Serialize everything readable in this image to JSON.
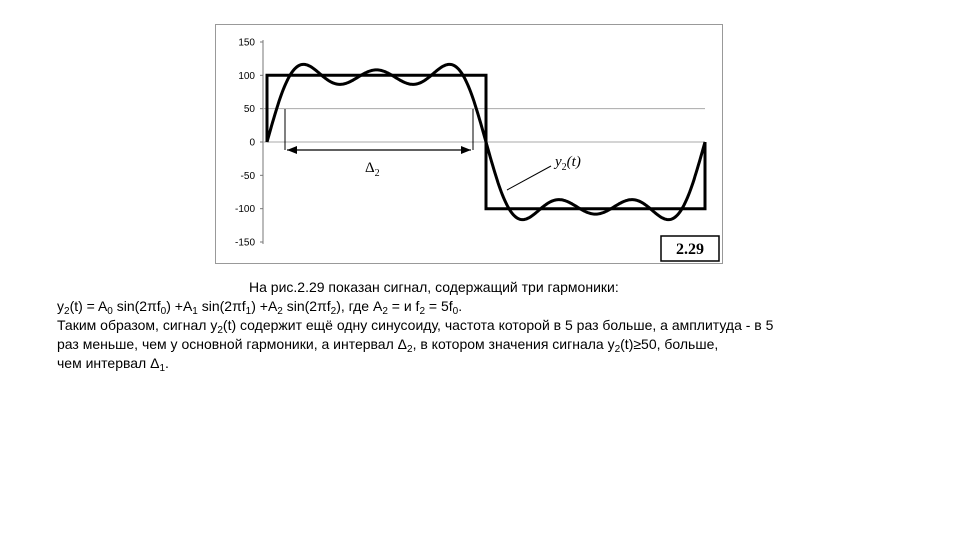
{
  "figure": {
    "y_ticks": [
      "150",
      "100",
      "50",
      "0",
      "-50",
      "-100",
      "-150"
    ],
    "delta_label_base": "Δ",
    "delta_label_sub": "2",
    "curve_label_base": "y",
    "curve_label_sub": "2",
    "curve_label_arg": "(t)",
    "figure_number": "2.29"
  },
  "chart_data": {
    "type": "line",
    "ylim": [
      -150,
      150
    ],
    "y_ticks": [
      150,
      100,
      50,
      0,
      -50,
      -100,
      -150
    ],
    "series": [
      {
        "values": [
          0,
          100,
          100,
          -100,
          -100,
          0
        ]
      },
      {
        "values": [
          0,
          93,
          84,
          92,
          84,
          93,
          0,
          -93,
          -84,
          -92,
          -84,
          -93,
          0
        ]
      }
    ],
    "threshold": 50
  },
  "text": {
    "line1": "На рис.2.29 показан сигнал, содержащий три гармоники:",
    "line2": [
      "y",
      "2",
      "(t) = A",
      "0",
      " sin(2πf",
      "0",
      ") +A",
      "1",
      " sin(2πf",
      "1",
      ") +A",
      "2",
      " sin(2πf",
      "2",
      "), где A",
      "2",
      " =  и f",
      "2",
      " = 5f",
      "0",
      "."
    ],
    "line3": "Таким образом, сигнал y",
    "line3_sub": "2",
    "line3_b": "(t) содержит ещё одну синусоиду, частота которой в 5 раз больше, а амплитуда - в 5",
    "line4_a": "раз меньше, чем у основной гармоники, а интервал Δ",
    "line4_sub1": "2",
    "line4_b": ", в котором значения сигнала y",
    "line4_sub2": "2",
    "line4_c": "(t)≥50, больше,",
    "line5_a": "чем интервал Δ",
    "line5_sub": "1",
    "line5_b": "."
  }
}
